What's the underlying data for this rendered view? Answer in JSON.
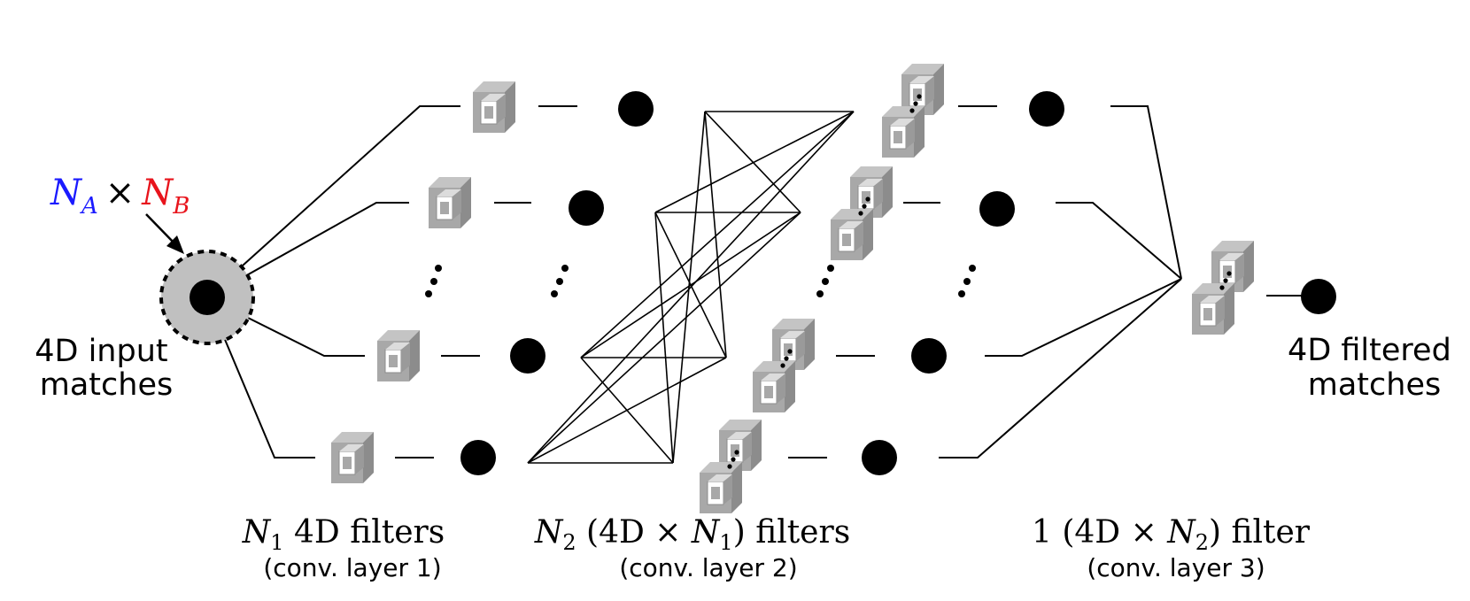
{
  "input": {
    "formula": {
      "a": "N",
      "a_sub": "A",
      "times": "×",
      "b": "N",
      "b_sub": "B",
      "color_a": "#1a1aff",
      "color_b": "#e8141c"
    },
    "label_line1": "4D input",
    "label_line2": "matches"
  },
  "output": {
    "label_line1": "4D filtered",
    "label_line2": "matches"
  },
  "layers": [
    {
      "caption_n": "N",
      "caption_n_sub": "1",
      "caption_rest": " 4D filters",
      "subcaption": "(conv. layer 1)",
      "filter_icon": "cube-icon"
    },
    {
      "caption_n": "N",
      "caption_n_sub": "2",
      "caption_open": " (4D × ",
      "caption_n2": "N",
      "caption_n2_sub": "1",
      "caption_close": ") filters",
      "subcaption": "(conv. layer 2)",
      "filter_icon": "stacked-cube-icon"
    },
    {
      "caption_prefix": "1 (4D × ",
      "caption_n": "N",
      "caption_n_sub": "2",
      "caption_close": ") filter",
      "subcaption": "(conv. layer 3)",
      "filter_icon": "stacked-cube-icon"
    }
  ],
  "colors": {
    "cube": "#a8a8a8",
    "cube_light": "#c4c4c4",
    "cube_dark": "#8c8c8c",
    "node": "#000000",
    "input_halo": "#c0c0c0"
  }
}
